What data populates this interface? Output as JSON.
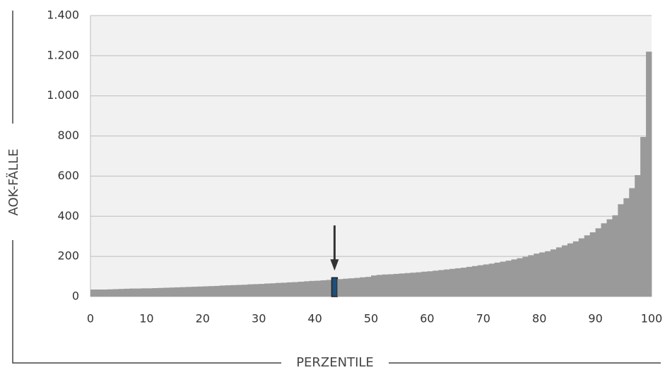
{
  "chart_data": {
    "type": "histogram",
    "x_label": "PERZENTILE",
    "y_label": "AOK-FÄLLE",
    "bins": [
      0,
      1,
      2,
      3,
      4,
      5,
      6,
      7,
      8,
      9,
      10,
      11,
      12,
      13,
      14,
      15,
      16,
      17,
      18,
      19,
      20,
      21,
      22,
      23,
      24,
      25,
      26,
      27,
      28,
      29,
      30,
      31,
      32,
      33,
      34,
      35,
      36,
      37,
      38,
      39,
      40,
      41,
      42,
      43,
      44,
      45,
      46,
      47,
      48,
      49,
      50,
      51,
      52,
      53,
      54,
      55,
      56,
      57,
      58,
      59,
      60,
      61,
      62,
      63,
      64,
      65,
      66,
      67,
      68,
      69,
      70,
      71,
      72,
      73,
      74,
      75,
      76,
      77,
      78,
      79,
      80,
      81,
      82,
      83,
      84,
      85,
      86,
      87,
      88,
      89,
      90,
      91,
      92,
      93,
      94,
      95,
      96,
      97,
      98,
      99,
      100
    ],
    "values": [
      35,
      35,
      35,
      36,
      37,
      38,
      39,
      40,
      40,
      41,
      41,
      42,
      43,
      44,
      45,
      46,
      47,
      48,
      49,
      50,
      51,
      52,
      53,
      55,
      56,
      57,
      58,
      59,
      61,
      62,
      63,
      65,
      66,
      68,
      69,
      71,
      72,
      74,
      76,
      78,
      79,
      81,
      83,
      94,
      87,
      89,
      91,
      93,
      96,
      98,
      105,
      108,
      110,
      111,
      113,
      115,
      117,
      119,
      121,
      124,
      126,
      129,
      132,
      135,
      138,
      141,
      144,
      148,
      152,
      156,
      160,
      164,
      169,
      174,
      179,
      185,
      191,
      198,
      206,
      214,
      220,
      226,
      235,
      245,
      255,
      265,
      275,
      290,
      305,
      320,
      340,
      365,
      385,
      405,
      460,
      490,
      540,
      605,
      795,
      1220
    ],
    "color": "#9a9a9a",
    "highlight": {
      "index": 43,
      "color": "#1f4e79"
    },
    "xlim": [
      0,
      100
    ],
    "xticks": [
      0,
      10,
      20,
      30,
      40,
      50,
      60,
      70,
      80,
      90,
      100
    ],
    "ylim": [
      0,
      1400
    ],
    "yticks": [
      0,
      200,
      400,
      600,
      800,
      {
        "value": 1000,
        "label": "1.000"
      },
      {
        "value": 1200,
        "label": "1.200"
      },
      {
        "value": 1400,
        "label": "1.400"
      }
    ],
    "grid": true
  }
}
